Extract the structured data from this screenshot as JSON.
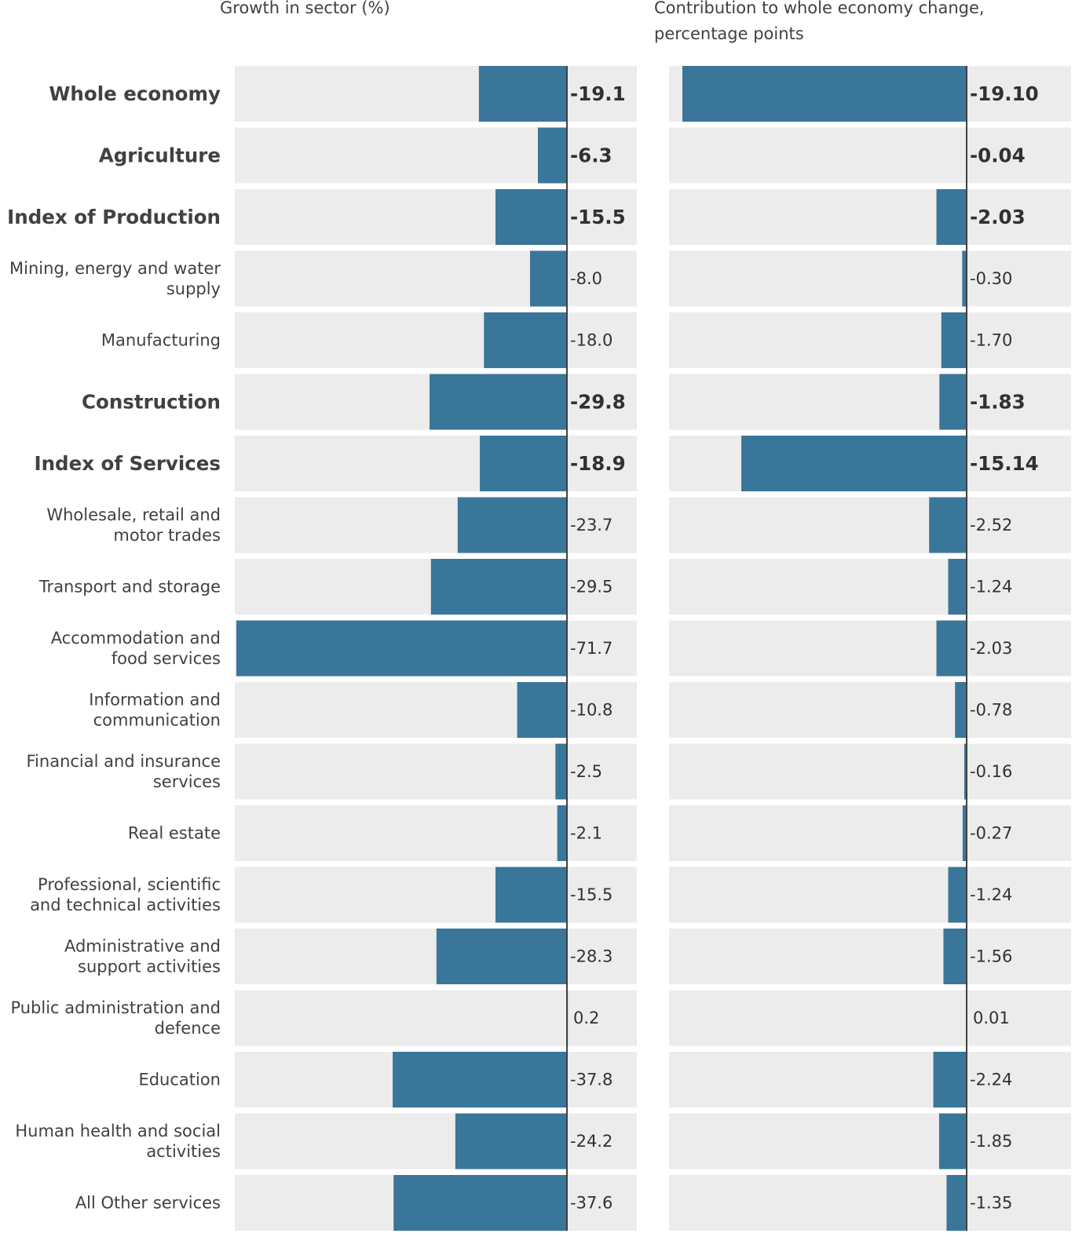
{
  "chart_data": {
    "type": "bar",
    "orientation": "horizontal",
    "categories": [
      "Whole economy",
      "Agriculture",
      "Index of Production",
      "Mining, energy and water supply",
      "Manufacturing",
      "Construction",
      "Index of Services",
      "Wholesale, retail and motor trades",
      "Transport and storage",
      "Accommodation and food services",
      "Information and communication",
      "Financial and insurance services",
      "Real estate",
      "Professional, scientific and technical activities",
      "Administrative and support activities",
      "Public administration and defence",
      "Education",
      "Human health and social activities",
      "All Other services"
    ],
    "category_lines": [
      [
        "Whole economy"
      ],
      [
        "Agriculture"
      ],
      [
        "Index of Production"
      ],
      [
        "Mining, energy and water",
        "supply"
      ],
      [
        "Manufacturing"
      ],
      [
        "Construction"
      ],
      [
        "Index of Services"
      ],
      [
        "Wholesale, retail and",
        "motor trades"
      ],
      [
        "Transport and storage"
      ],
      [
        "Accommodation and",
        "food services"
      ],
      [
        "Information and",
        "communication"
      ],
      [
        "Financial and insurance",
        "services"
      ],
      [
        "Real estate"
      ],
      [
        "Professional, scientific",
        "and technical activities"
      ],
      [
        "Administrative and",
        "support activities"
      ],
      [
        "Public administration and",
        "defence"
      ],
      [
        "Education"
      ],
      [
        "Human health and social",
        "activities"
      ],
      [
        "All Other services"
      ]
    ],
    "bold_categories": [
      0,
      1,
      2,
      5,
      6
    ],
    "panels": [
      {
        "title": "Growth in sector (%)",
        "values": [
          -19.1,
          -6.3,
          -15.5,
          -8.0,
          -18.0,
          -29.8,
          -18.9,
          -23.7,
          -29.5,
          -71.7,
          -10.8,
          -2.5,
          -2.1,
          -15.5,
          -28.3,
          0.2,
          -37.8,
          -24.2,
          -37.6
        ],
        "value_labels": [
          "-19.1",
          "-6.3",
          "-15.5",
          "-8.0",
          "-18.0",
          "-29.8",
          "-18.9",
          "-23.7",
          "-29.5",
          "-71.7",
          "-10.8",
          "-2.5",
          "-2.1",
          "-15.5",
          "-28.3",
          "0.2",
          "-37.8",
          "-24.2",
          "-37.6"
        ],
        "xlim": [
          -72,
          15
        ]
      },
      {
        "title": "Contribution to whole economy change, percentage points",
        "title_lines": [
          "Contribution to whole economy change,",
          "percentage points"
        ],
        "values": [
          -19.1,
          -0.04,
          -2.03,
          -0.3,
          -1.7,
          -1.83,
          -15.14,
          -2.52,
          -1.24,
          -2.03,
          -0.78,
          -0.16,
          -0.27,
          -1.24,
          -1.56,
          0.01,
          -2.24,
          -1.85,
          -1.35
        ],
        "value_labels": [
          "-19.10",
          "-0.04",
          "-2.03",
          "-0.30",
          "-1.70",
          "-1.83",
          "-15.14",
          "-2.52",
          "-1.24",
          "-2.03",
          "-0.78",
          "-0.16",
          "-0.27",
          "-1.24",
          "-1.56",
          "0.01",
          "-2.24",
          "-1.85",
          "-1.35"
        ],
        "xlim": [
          -20,
          7
        ]
      }
    ],
    "colors": {
      "bar": "#3a7699",
      "row_background": "#ececec",
      "zero_line": "#414042",
      "text": "#323132"
    },
    "grid": false,
    "legend": "none"
  }
}
